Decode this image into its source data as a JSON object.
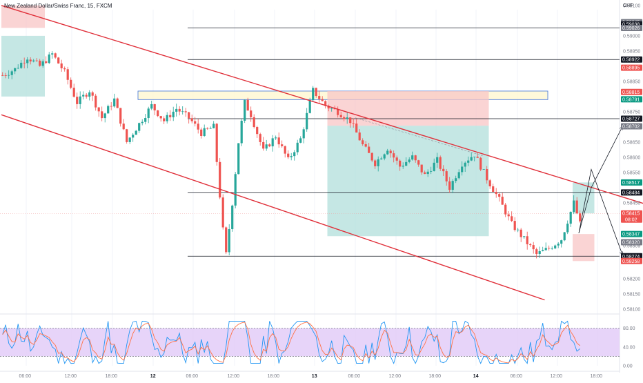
{
  "header": {
    "title": "New Zealand Dollar/Swiss Franc, 15, FXCM",
    "currency": "CHF"
  },
  "colors": {
    "up": "#26a69a",
    "down": "#ef5350",
    "trend": "#e0303a",
    "profit_zone": "#b2dfdb",
    "loss_zone": "#f8c6c6",
    "supply_zone": "#fff8d6",
    "zone_border": "#3b6fd8",
    "rsi_band": "#e1c9f7",
    "rsi_fast": "#2196f3",
    "rsi_slow": "#ff7043",
    "axis_text": "#787b86",
    "price_line": "#f2a0a0"
  },
  "chart_data": [
    {
      "type": "candlestick",
      "title": "New Zealand Dollar/Swiss Franc, 15, FXCM",
      "ylim": [
        0.58095,
        0.59118
      ],
      "price_labels": [
        "0.59100",
        "0.59000",
        "0.58950",
        "0.58850",
        "0.58750",
        "0.58650",
        "0.58600",
        "0.58550",
        "0.58450",
        "0.58309",
        "0.58200",
        "0.58150",
        "0.58100"
      ],
      "time_labels": [
        "06:00",
        "12:00",
        "18:00",
        "12",
        "06:00",
        "12:00",
        "18:00",
        "13",
        "06:00",
        "12:00",
        "18:00",
        "14",
        "06:00",
        "12:00",
        "18:00"
      ],
      "path_points": [
        [
          0,
          0.5887
        ],
        [
          4,
          0.5889
        ],
        [
          8,
          0.5893
        ],
        [
          12,
          0.589
        ],
        [
          16,
          0.5894
        ],
        [
          20,
          0.5888
        ],
        [
          24,
          0.5878
        ],
        [
          28,
          0.5882
        ],
        [
          32,
          0.5873
        ],
        [
          36,
          0.5879
        ],
        [
          40,
          0.5865
        ],
        [
          44,
          0.5871
        ],
        [
          48,
          0.5877
        ],
        [
          52,
          0.5872
        ],
        [
          56,
          0.5876
        ],
        [
          60,
          0.5873
        ],
        [
          64,
          0.5868
        ],
        [
          68,
          0.587
        ],
        [
          71,
          0.5836
        ],
        [
          72,
          0.5828
        ],
        [
          74,
          0.5845
        ],
        [
          76,
          0.5865
        ],
        [
          78,
          0.5878
        ],
        [
          80,
          0.5874
        ],
        [
          84,
          0.5862
        ],
        [
          88,
          0.5867
        ],
        [
          92,
          0.5859
        ],
        [
          96,
          0.5866
        ],
        [
          100,
          0.5882
        ],
        [
          104,
          0.5877
        ],
        [
          108,
          0.5875
        ],
        [
          112,
          0.5872
        ],
        [
          116,
          0.5864
        ],
        [
          120,
          0.5858
        ],
        [
          124,
          0.5863
        ],
        [
          128,
          0.5857
        ],
        [
          132,
          0.586
        ],
        [
          136,
          0.5854
        ],
        [
          140,
          0.5859
        ],
        [
          144,
          0.585
        ],
        [
          148,
          0.5858
        ],
        [
          152,
          0.5861
        ],
        [
          156,
          0.5853
        ],
        [
          160,
          0.5846
        ],
        [
          164,
          0.5838
        ],
        [
          168,
          0.5833
        ],
        [
          172,
          0.5828
        ],
        [
          176,
          0.583
        ],
        [
          180,
          0.5833
        ],
        [
          184,
          0.5845
        ],
        [
          186,
          0.5838
        ]
      ],
      "reference_levels": [
        0.59026,
        0.58922,
        0.58727,
        0.58484,
        0.58274
      ],
      "trend_lines": [
        {
          "from": [
            0,
            0.591
          ],
          "to": [
            260,
            0.5828
          ]
        },
        {
          "from": [
            0,
            0.5874
          ],
          "to": [
            175,
            0.5813
          ]
        }
      ],
      "zones": [
        {
          "kind": "supply",
          "x": [
            44,
            176
          ],
          "y": [
            0.5879,
            0.58818
          ]
        },
        {
          "kind": "short-profit",
          "x": [
            105,
            157
          ],
          "y": [
            0.5834,
            0.58704
          ]
        },
        {
          "kind": "short-loss",
          "x": [
            105,
            157
          ],
          "y": [
            0.58704,
            0.58818
          ]
        },
        {
          "kind": "long-profit",
          "x": [
            184,
            191
          ],
          "y": [
            0.58415,
            0.58517
          ]
        },
        {
          "kind": "long-loss",
          "x": [
            184,
            191
          ],
          "y": [
            0.58258,
            0.58347
          ]
        },
        {
          "kind": "earlier-loss",
          "x": [
            0,
            14
          ],
          "y": [
            0.59026,
            0.591
          ]
        },
        {
          "kind": "earlier-profit",
          "x": [
            0,
            14
          ],
          "y": [
            0.588,
            0.59
          ]
        }
      ],
      "projections": [
        {
          "from": [
            186,
            0.5835
          ],
          "via": [
            190,
            0.585
          ],
          "to": [
            200,
            0.587
          ]
        },
        {
          "from": [
            186,
            0.5835
          ],
          "via": [
            190,
            0.5856
          ],
          "to": [
            200,
            0.5828
          ]
        }
      ],
      "axis_badges": [
        {
          "value": "0.59045",
          "style": "gray"
        },
        {
          "value": "0.59038",
          "style": "black"
        },
        {
          "value": "0.59026",
          "style": "gray"
        },
        {
          "value": "0.58922",
          "style": "black"
        },
        {
          "value": "0.58895",
          "style": "red"
        },
        {
          "value": "0.58815",
          "style": "red"
        },
        {
          "value": "0.58791",
          "style": "teal"
        },
        {
          "value": "0.58727",
          "style": "black"
        },
        {
          "value": "0.58702",
          "style": "gray"
        },
        {
          "value": "0.58517",
          "style": "teal"
        },
        {
          "value": "0.58484",
          "style": "black"
        },
        {
          "value": "0.58415",
          "style": "red",
          "sub": "08:02"
        },
        {
          "value": "0.58347",
          "style": "teal"
        },
        {
          "value": "0.58320",
          "style": "gray"
        },
        {
          "value": "0.58274",
          "style": "black"
        },
        {
          "value": "0.58258",
          "style": "red"
        }
      ]
    },
    {
      "type": "line",
      "name": "oscillator",
      "ylim": [
        0,
        100
      ],
      "levels": [
        80,
        20
      ],
      "tick_labels": [
        "80.00",
        "40.00",
        "0.00"
      ]
    }
  ]
}
